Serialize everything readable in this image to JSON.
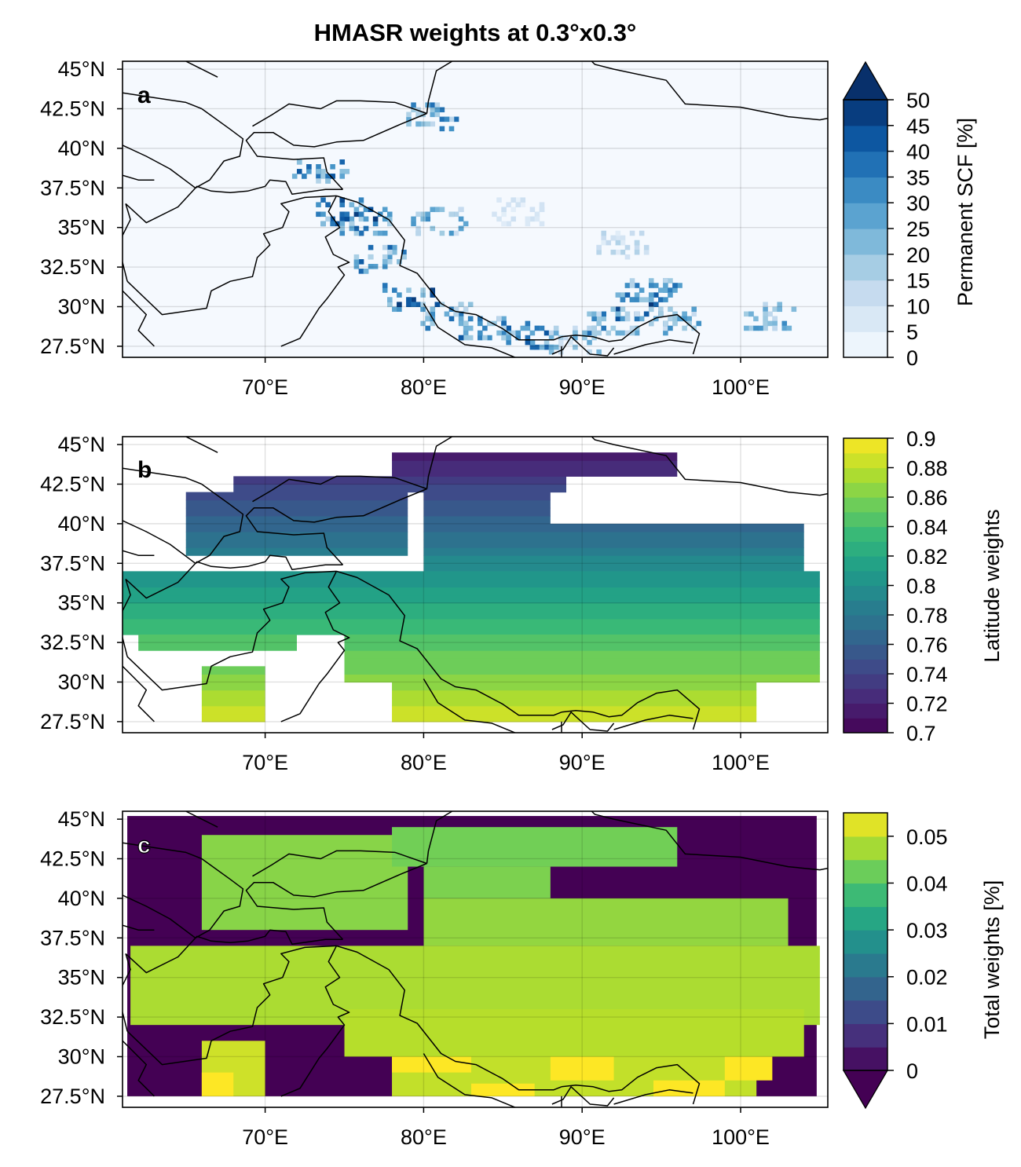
{
  "figure": {
    "title": "HMASR weights at 0.3°x0.3°"
  },
  "chart_data": [
    {
      "type": "heatmap",
      "panel_label": "a",
      "lon_range": [
        61,
        105.5
      ],
      "lat_range": [
        26.8,
        45.5
      ],
      "x_ticks": [
        "70°E",
        "80°E",
        "90°E",
        "100°E"
      ],
      "x_tick_values": [
        70,
        80,
        90,
        100
      ],
      "y_ticks": [
        "45°N",
        "42.5°N",
        "40°N",
        "37.5°N",
        "35°N",
        "32.5°N",
        "30°N",
        "27.5°N"
      ],
      "y_tick_values": [
        45,
        42.5,
        40,
        37.5,
        35,
        32.5,
        30,
        27.5
      ],
      "grid": true,
      "colorbar": {
        "label": "Permanent SCF [%]",
        "ticks": [
          "0",
          "5",
          "10",
          "15",
          "20",
          "25",
          "30",
          "35",
          "40",
          "45",
          "50"
        ],
        "extend": "max",
        "colormap": "Blues",
        "range": [
          0,
          50
        ]
      },
      "zero_fill_color": "#f5f9fe",
      "clusters": [
        {
          "lon": 73.5,
          "lat": 38.5,
          "value": 40
        },
        {
          "lon": 75.0,
          "lat": 36.0,
          "value": 45
        },
        {
          "lon": 76.3,
          "lat": 35.3,
          "value": 45
        },
        {
          "lon": 77.2,
          "lat": 33.0,
          "value": 40
        },
        {
          "lon": 79.2,
          "lat": 30.5,
          "value": 45
        },
        {
          "lon": 81.5,
          "lat": 29.5,
          "value": 40
        },
        {
          "lon": 84.0,
          "lat": 28.6,
          "value": 40
        },
        {
          "lon": 86.5,
          "lat": 28.1,
          "value": 40
        },
        {
          "lon": 80.5,
          "lat": 42.0,
          "value": 35
        },
        {
          "lon": 81.0,
          "lat": 35.5,
          "value": 30
        },
        {
          "lon": 93.5,
          "lat": 30.0,
          "value": 45
        },
        {
          "lon": 94.5,
          "lat": 31.0,
          "value": 35
        },
        {
          "lon": 92.0,
          "lat": 29.0,
          "value": 35
        },
        {
          "lon": 96.0,
          "lat": 29.2,
          "value": 30
        },
        {
          "lon": 101.8,
          "lat": 29.3,
          "value": 30
        },
        {
          "lon": 89.5,
          "lat": 28.0,
          "value": 25
        },
        {
          "lon": 92.5,
          "lat": 34.0,
          "value": 15
        },
        {
          "lon": 86.0,
          "lat": 36.0,
          "value": 10
        }
      ]
    },
    {
      "type": "heatmap",
      "panel_label": "b",
      "lon_range": [
        61,
        105.5
      ],
      "lat_range": [
        26.8,
        45.5
      ],
      "x_ticks": [
        "70°E",
        "80°E",
        "90°E",
        "100°E"
      ],
      "x_tick_values": [
        70,
        80,
        90,
        100
      ],
      "y_ticks": [
        "45°N",
        "42.5°N",
        "40°N",
        "37.5°N",
        "35°N",
        "32.5°N",
        "30°N",
        "27.5°N"
      ],
      "y_tick_values": [
        45,
        42.5,
        40,
        37.5,
        35,
        32.5,
        30,
        27.5
      ],
      "grid": true,
      "colorbar": {
        "label": "Latitude weights",
        "ticks": [
          "0.7",
          "0.72",
          "0.74",
          "0.76",
          "0.78",
          "0.8",
          "0.82",
          "0.84",
          "0.86",
          "0.88",
          "0.9"
        ],
        "extend": "neither",
        "colormap": "viridis",
        "range": [
          0.7,
          0.9
        ]
      },
      "value_rule": "cos(latitude)",
      "valid_region": [
        {
          "lon": [
            68,
            89
          ],
          "lat": [
            42,
            43
          ]
        },
        {
          "lon": [
            78,
            96
          ],
          "lat": [
            43,
            44.5
          ]
        },
        {
          "lon": [
            65,
            79
          ],
          "lat": [
            38,
            42
          ]
        },
        {
          "lon": [
            80,
            88
          ],
          "lat": [
            40,
            42
          ]
        },
        {
          "lon": [
            80,
            104
          ],
          "lat": [
            37,
            40
          ]
        },
        {
          "lon": [
            61,
            105
          ],
          "lat": [
            33,
            37
          ]
        },
        {
          "lon": [
            62,
            72
          ],
          "lat": [
            32,
            33
          ]
        },
        {
          "lon": [
            75,
            105
          ],
          "lat": [
            30,
            33
          ]
        },
        {
          "lon": [
            66,
            70
          ],
          "lat": [
            27.5,
            31
          ]
        },
        {
          "lon": [
            78,
            101
          ],
          "lat": [
            27.5,
            30
          ]
        }
      ]
    },
    {
      "type": "heatmap",
      "panel_label": "c",
      "lon_range": [
        61,
        105.5
      ],
      "lat_range": [
        26.8,
        45.5
      ],
      "x_ticks": [
        "70°E",
        "80°E",
        "90°E",
        "100°E"
      ],
      "x_tick_values": [
        70,
        80,
        90,
        100
      ],
      "y_ticks": [
        "45°N",
        "42.5°N",
        "40°N",
        "37.5°N",
        "35°N",
        "32.5°N",
        "30°N",
        "27.5°N"
      ],
      "y_tick_values": [
        45,
        42.5,
        40,
        37.5,
        35,
        32.5,
        30,
        27.5
      ],
      "grid": true,
      "colorbar": {
        "label": "Total weights [%]",
        "ticks": [
          "0",
          "0.01",
          "0.02",
          "0.03",
          "0.04",
          "0.05"
        ],
        "tick_values": [
          0,
          0.01,
          0.02,
          0.03,
          0.04,
          0.05
        ],
        "extend": "min",
        "colormap": "viridis",
        "range": [
          0,
          0.055
        ]
      },
      "background_value": 0,
      "regions": [
        {
          "lon": [
            61.5,
            105
          ],
          "lat": [
            32,
            37
          ],
          "value": 0.048
        },
        {
          "lon": [
            66,
            79
          ],
          "lat": [
            38,
            44
          ],
          "value": 0.045
        },
        {
          "lon": [
            80,
            103
          ],
          "lat": [
            37,
            40
          ],
          "value": 0.046
        },
        {
          "lon": [
            75,
            104
          ],
          "lat": [
            30,
            33
          ],
          "value": 0.049
        },
        {
          "lon": [
            80,
            88
          ],
          "lat": [
            40,
            42
          ],
          "value": 0.044
        },
        {
          "lon": [
            78,
            96
          ],
          "lat": [
            42,
            44.5
          ],
          "value": 0.043
        },
        {
          "lon": [
            66,
            70
          ],
          "lat": [
            27.5,
            31
          ],
          "value": 0.051
        },
        {
          "lon": [
            78,
            101
          ],
          "lat": [
            27.5,
            30
          ],
          "value": 0.05
        },
        {
          "lon": [
            66,
            68
          ],
          "lat": [
            27.5,
            29
          ],
          "value": 0.055
        },
        {
          "lon": [
            78,
            83
          ],
          "lat": [
            29,
            30
          ],
          "value": 0.055
        },
        {
          "lon": [
            83,
            87
          ],
          "lat": [
            27.5,
            28.3
          ],
          "value": 0.055
        },
        {
          "lon": [
            88,
            92
          ],
          "lat": [
            28.5,
            30
          ],
          "value": 0.055
        },
        {
          "lon": [
            94.5,
            99
          ],
          "lat": [
            27.5,
            28.5
          ],
          "value": 0.055
        },
        {
          "lon": [
            99,
            102
          ],
          "lat": [
            28.5,
            30
          ],
          "value": 0.055
        }
      ]
    }
  ]
}
